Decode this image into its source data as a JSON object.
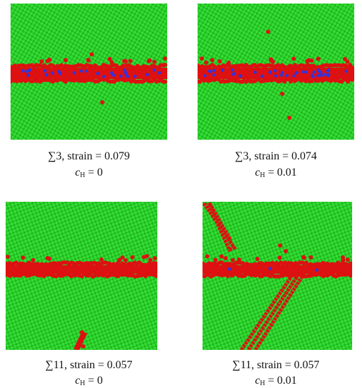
{
  "panels": [
    {
      "caption": "∑3, strain = 0.079",
      "symbol": "c",
      "subscript": "H",
      "value": "= 0"
    },
    {
      "caption": "∑3, strain = 0.074",
      "symbol": "c",
      "subscript": "H",
      "value": "= 0.01"
    },
    {
      "caption": "∑11, strain = 0.057",
      "symbol": "c",
      "subscript": "H",
      "value": "= 0"
    },
    {
      "caption": "∑11, strain = 0.057",
      "symbol": "c",
      "subscript": "H",
      "value": "= 0.01"
    }
  ]
}
